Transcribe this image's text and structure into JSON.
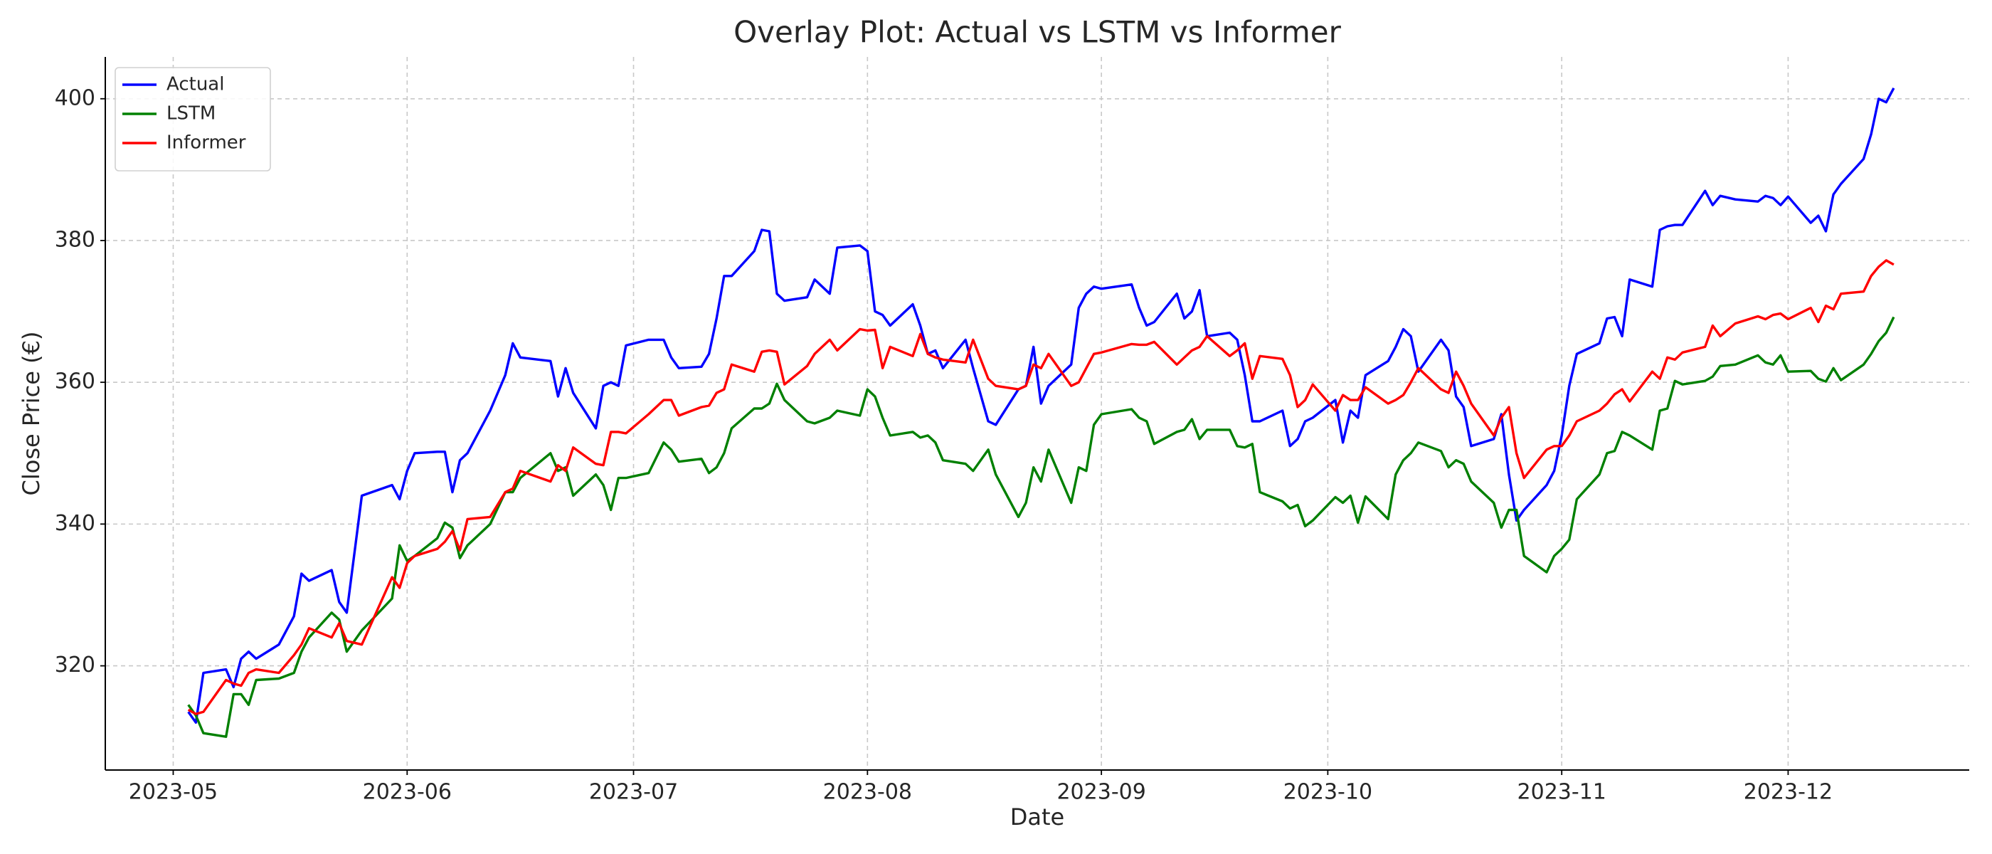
{
  "chart_data": {
    "type": "line",
    "title": "Overlay Plot: Actual vs LSTM vs Informer",
    "x_label": "Date",
    "y_label": "Close Price (€)",
    "x": [
      "2023-05-03",
      "2023-05-04",
      "2023-05-05",
      "2023-05-08",
      "2023-05-09",
      "2023-05-10",
      "2023-05-11",
      "2023-05-12",
      "2023-05-15",
      "2023-05-17",
      "2023-05-18",
      "2023-05-19",
      "2023-05-22",
      "2023-05-23",
      "2023-05-24",
      "2023-05-26",
      "2023-05-30",
      "2023-05-31",
      "2023-06-01",
      "2023-06-02",
      "2023-06-05",
      "2023-06-06",
      "2023-06-07",
      "2023-06-08",
      "2023-06-09",
      "2023-06-12",
      "2023-06-14",
      "2023-06-15",
      "2023-06-16",
      "2023-06-20",
      "2023-06-21",
      "2023-06-22",
      "2023-06-23",
      "2023-06-26",
      "2023-06-27",
      "2023-06-28",
      "2023-06-29",
      "2023-06-30",
      "2023-07-03",
      "2023-07-05",
      "2023-07-06",
      "2023-07-07",
      "2023-07-10",
      "2023-07-11",
      "2023-07-12",
      "2023-07-13",
      "2023-07-14",
      "2023-07-17",
      "2023-07-18",
      "2023-07-19",
      "2023-07-20",
      "2023-07-21",
      "2023-07-24",
      "2023-07-25",
      "2023-07-27",
      "2023-07-28",
      "2023-07-31",
      "2023-08-01",
      "2023-08-02",
      "2023-08-03",
      "2023-08-04",
      "2023-08-07",
      "2023-08-08",
      "2023-08-09",
      "2023-08-10",
      "2023-08-11",
      "2023-08-14",
      "2023-08-15",
      "2023-08-17",
      "2023-08-18",
      "2023-08-21",
      "2023-08-22",
      "2023-08-23",
      "2023-08-24",
      "2023-08-25",
      "2023-08-28",
      "2023-08-29",
      "2023-08-30",
      "2023-08-31",
      "2023-09-01",
      "2023-09-05",
      "2023-09-06",
      "2023-09-07",
      "2023-09-08",
      "2023-09-11",
      "2023-09-12",
      "2023-09-13",
      "2023-09-14",
      "2023-09-15",
      "2023-09-18",
      "2023-09-19",
      "2023-09-20",
      "2023-09-21",
      "2023-09-22",
      "2023-09-25",
      "2023-09-26",
      "2023-09-27",
      "2023-09-28",
      "2023-09-29",
      "2023-10-02",
      "2023-10-03",
      "2023-10-04",
      "2023-10-05",
      "2023-10-06",
      "2023-10-09",
      "2023-10-10",
      "2023-10-11",
      "2023-10-12",
      "2023-10-13",
      "2023-10-16",
      "2023-10-17",
      "2023-10-18",
      "2023-10-19",
      "2023-10-20",
      "2023-10-23",
      "2023-10-24",
      "2023-10-25",
      "2023-10-26",
      "2023-10-27",
      "2023-10-30",
      "2023-10-31",
      "2023-11-01",
      "2023-11-02",
      "2023-11-03",
      "2023-11-06",
      "2023-11-07",
      "2023-11-08",
      "2023-11-09",
      "2023-11-10",
      "2023-11-13",
      "2023-11-14",
      "2023-11-15",
      "2023-11-16",
      "2023-11-17",
      "2023-11-20",
      "2023-11-21",
      "2023-11-22",
      "2023-11-24",
      "2023-11-27",
      "2023-11-28",
      "2023-11-29",
      "2023-11-30",
      "2023-12-01",
      "2023-12-04",
      "2023-12-05",
      "2023-12-06",
      "2023-12-07",
      "2023-12-08",
      "2023-12-11",
      "2023-12-12",
      "2023-12-13",
      "2023-12-14",
      "2023-12-15"
    ],
    "series": [
      {
        "name": "Actual",
        "color": "#0000ff",
        "values": [
          313.5,
          312,
          319,
          319.5,
          317,
          321,
          322,
          321,
          323,
          327,
          333,
          332,
          333.5,
          329,
          327.5,
          344,
          345.5,
          343.5,
          347.5,
          350,
          350.2,
          350.2,
          344.5,
          349,
          350,
          356,
          361,
          365.5,
          363.5,
          363,
          358,
          362,
          358.5,
          353.5,
          359.5,
          360,
          359.5,
          365.2,
          366,
          366,
          363.5,
          362,
          362.2,
          364,
          369,
          375,
          375,
          378.5,
          381.5,
          381.3,
          372.5,
          371.5,
          372,
          374.5,
          372.5,
          379,
          379.3,
          378.5,
          370,
          369.5,
          368,
          371,
          368,
          364,
          364.5,
          362,
          366,
          362,
          354.5,
          354,
          359,
          359.5,
          365,
          357,
          359.5,
          362.5,
          370.5,
          372.5,
          373.5,
          373.2,
          373.8,
          370.5,
          368,
          368.5,
          372.5,
          369,
          370,
          373,
          366.5,
          367,
          366,
          361,
          354.5,
          354.5,
          356,
          351,
          352,
          354.5,
          355,
          357.5,
          351.5,
          356,
          355,
          361,
          363,
          365,
          367.5,
          366.5,
          361.5,
          366,
          364.5,
          358,
          356.5,
          351,
          352,
          355.5,
          347,
          340.5,
          342,
          345.5,
          347.5,
          352.5,
          359.5,
          364,
          365.5,
          369,
          369.2,
          366.5,
          374.5,
          373.5,
          381.5,
          382,
          382.2,
          382.2,
          387,
          385,
          386.3,
          385.8,
          385.5,
          386.3,
          386,
          385,
          386.2,
          382.5,
          383.5,
          381.3,
          386.5,
          388,
          391.5,
          395,
          400,
          399.5,
          401.5
        ]
      },
      {
        "name": "LSTM",
        "color": "#008000",
        "values": [
          314.5,
          313,
          310.5,
          310,
          316,
          316,
          314.5,
          318,
          318.2,
          319,
          322,
          324,
          327.5,
          326.5,
          322,
          325,
          329.5,
          337,
          334.8,
          335.5,
          338,
          340.2,
          339.5,
          335.2,
          337,
          340,
          344.5,
          344.5,
          346.5,
          350,
          347.5,
          348,
          344,
          347,
          345.5,
          342,
          346.5,
          346.5,
          347.2,
          351.5,
          350.5,
          348.8,
          349.2,
          347.2,
          348,
          350,
          353.5,
          356.3,
          356.3,
          357,
          359.8,
          357.5,
          354.5,
          354.2,
          355,
          356,
          355.3,
          359,
          358,
          355,
          352.5,
          353,
          352.2,
          352.5,
          351.5,
          349,
          348.5,
          347.5,
          350.5,
          347,
          341,
          343,
          348,
          346,
          350.5,
          343,
          348,
          347.5,
          354,
          355.5,
          356.2,
          355,
          354.5,
          351.3,
          353,
          353.3,
          354.8,
          352,
          353.3,
          353.3,
          351,
          350.8,
          351.3,
          344.5,
          343.2,
          342.2,
          342.7,
          339.7,
          340.5,
          343.8,
          343,
          344,
          340.2,
          343.9,
          340.7,
          347,
          349,
          350,
          351.5,
          350.3,
          348,
          349,
          348.5,
          346,
          343,
          339.5,
          342,
          342,
          335.5,
          333.2,
          335.5,
          336.5,
          337.8,
          343.5,
          347,
          350,
          350.3,
          353,
          352.5,
          350.5,
          356,
          356.3,
          360.2,
          359.7,
          360.2,
          360.8,
          362.3,
          362.5,
          363.8,
          362.8,
          362.5,
          363.8,
          361.5,
          361.6,
          360.5,
          360.1,
          362,
          360.3,
          362.5,
          364,
          365.8,
          367,
          369.2
        ]
      },
      {
        "name": "Informer",
        "color": "#ff0000",
        "values": [
          313.8,
          313.2,
          313.5,
          318,
          317.5,
          317.2,
          319,
          319.5,
          319,
          321.5,
          323,
          325.3,
          324,
          326,
          323.5,
          323,
          332.5,
          331,
          334.5,
          335.5,
          336.5,
          337.5,
          339,
          336.3,
          340.7,
          341,
          344.5,
          345,
          347.5,
          346,
          348.3,
          347.5,
          350.8,
          348.5,
          348.3,
          353,
          353,
          352.8,
          355.5,
          357.5,
          357.5,
          355.3,
          356.5,
          356.7,
          358.5,
          359,
          362.5,
          361.5,
          364.3,
          364.5,
          364.3,
          359.7,
          362.3,
          364,
          366,
          364.5,
          367.5,
          367.3,
          367.4,
          362,
          365,
          363.7,
          366.8,
          364,
          363.5,
          363.2,
          362.8,
          366,
          360.5,
          359.5,
          359,
          359.5,
          362.5,
          362,
          364,
          359.5,
          360,
          362,
          364,
          364.2,
          365.4,
          365.3,
          365.3,
          365.7,
          362.5,
          363.5,
          364.5,
          365,
          366.5,
          363.7,
          364.5,
          365.5,
          360.5,
          363.7,
          363.3,
          361,
          356.5,
          357.5,
          359.7,
          356,
          358.2,
          357.5,
          357.5,
          359.3,
          357,
          357.5,
          358.2,
          360,
          362,
          359,
          358.5,
          361.5,
          359.5,
          357,
          352.5,
          355,
          356.5,
          350,
          346.5,
          350.5,
          351,
          351,
          352.5,
          354.5,
          356,
          357,
          358.3,
          359,
          357.3,
          361.5,
          360.5,
          363.5,
          363.2,
          364.2,
          365,
          368,
          366.5,
          368.3,
          369.3,
          368.9,
          369.5,
          369.7,
          368.9,
          370.5,
          368.5,
          370.8,
          370.3,
          372.5,
          372.8,
          375,
          376.3,
          377.2,
          376.6
        ]
      }
    ],
    "xlim": [
      "2023-04-22",
      "2023-12-25"
    ],
    "xticks": [
      {
        "value": "2023-05-01",
        "label": "2023-05"
      },
      {
        "value": "2023-06-01",
        "label": "2023-06"
      },
      {
        "value": "2023-07-01",
        "label": "2023-07"
      },
      {
        "value": "2023-08-01",
        "label": "2023-08"
      },
      {
        "value": "2023-09-01",
        "label": "2023-09"
      },
      {
        "value": "2023-10-01",
        "label": "2023-10"
      },
      {
        "value": "2023-11-01",
        "label": "2023-11"
      },
      {
        "value": "2023-12-01",
        "label": "2023-12"
      }
    ],
    "ylim": [
      305.3,
      405.9
    ],
    "yticks": [
      320,
      340,
      360,
      380,
      400
    ],
    "grid": true,
    "legend": "upper left"
  }
}
